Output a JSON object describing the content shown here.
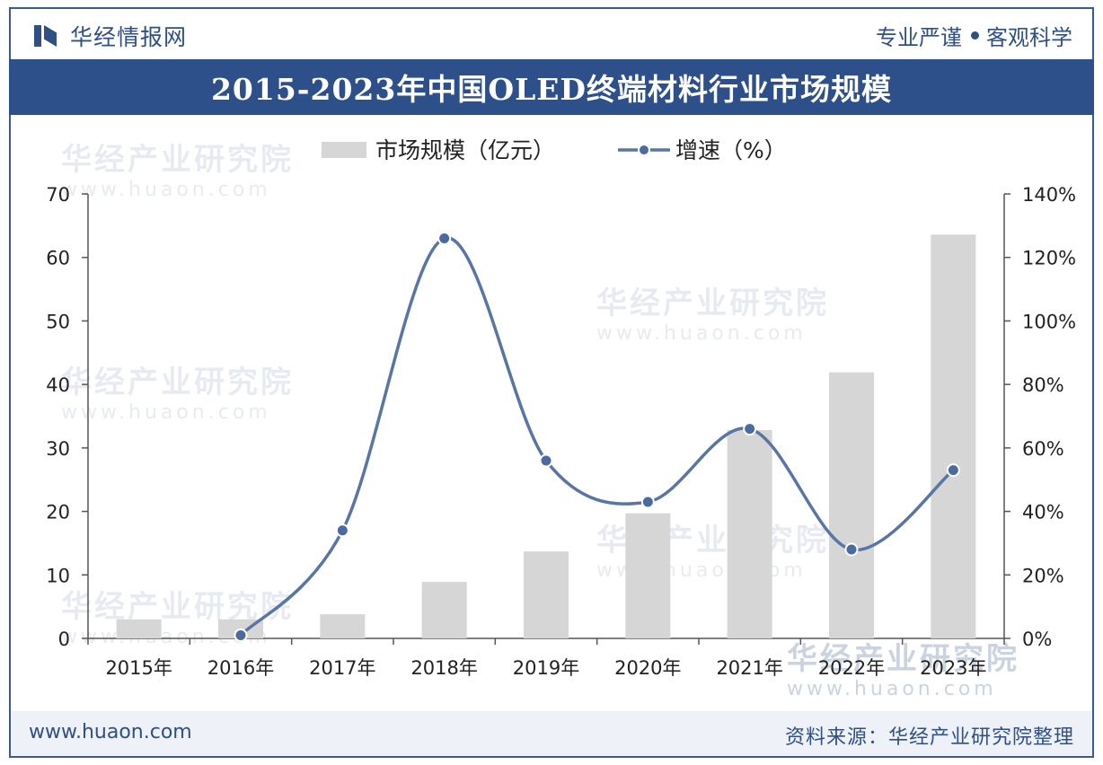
{
  "header": {
    "brand_name": "华经情报网",
    "slogan_part1": "专业严谨",
    "slogan_part2": "客观科学"
  },
  "title": "2015-2023年中国OLED终端材料行业市场规模",
  "footer": {
    "website": "www.huaon.com",
    "source": "资料来源：华经产业研究院整理"
  },
  "watermark": {
    "cn": "华经产业研究院",
    "en": "www.huaon.com"
  },
  "colors": {
    "bar": "#d6d6d6",
    "line": "#5875a6",
    "marker_fill": "#4a6aa0",
    "brand": "#2f4f85"
  },
  "chart_data": {
    "type": "bar",
    "categories": [
      "2015年",
      "2016年",
      "2017年",
      "2018年",
      "2019年",
      "2020年",
      "2021年",
      "2022年",
      "2023年"
    ],
    "series": [
      {
        "name": "市场规模（亿元）",
        "type": "bar",
        "axis": "left",
        "values": [
          3.0,
          3.0,
          3.8,
          8.9,
          13.7,
          19.7,
          32.8,
          41.9,
          63.6
        ]
      },
      {
        "name": "增速（%）",
        "type": "line",
        "axis": "right",
        "values": [
          null,
          1,
          34,
          126,
          56,
          43,
          66,
          28,
          53
        ]
      }
    ],
    "y_left": {
      "min": 0,
      "max": 70,
      "ticks": [
        "0",
        "10",
        "20",
        "30",
        "40",
        "50",
        "60",
        "70"
      ]
    },
    "y_right": {
      "min": 0,
      "max": 140,
      "ticks": [
        "0%",
        "20%",
        "40%",
        "60%",
        "80%",
        "100%",
        "120%",
        "140%"
      ]
    },
    "legend_position": "top",
    "grid": false
  }
}
